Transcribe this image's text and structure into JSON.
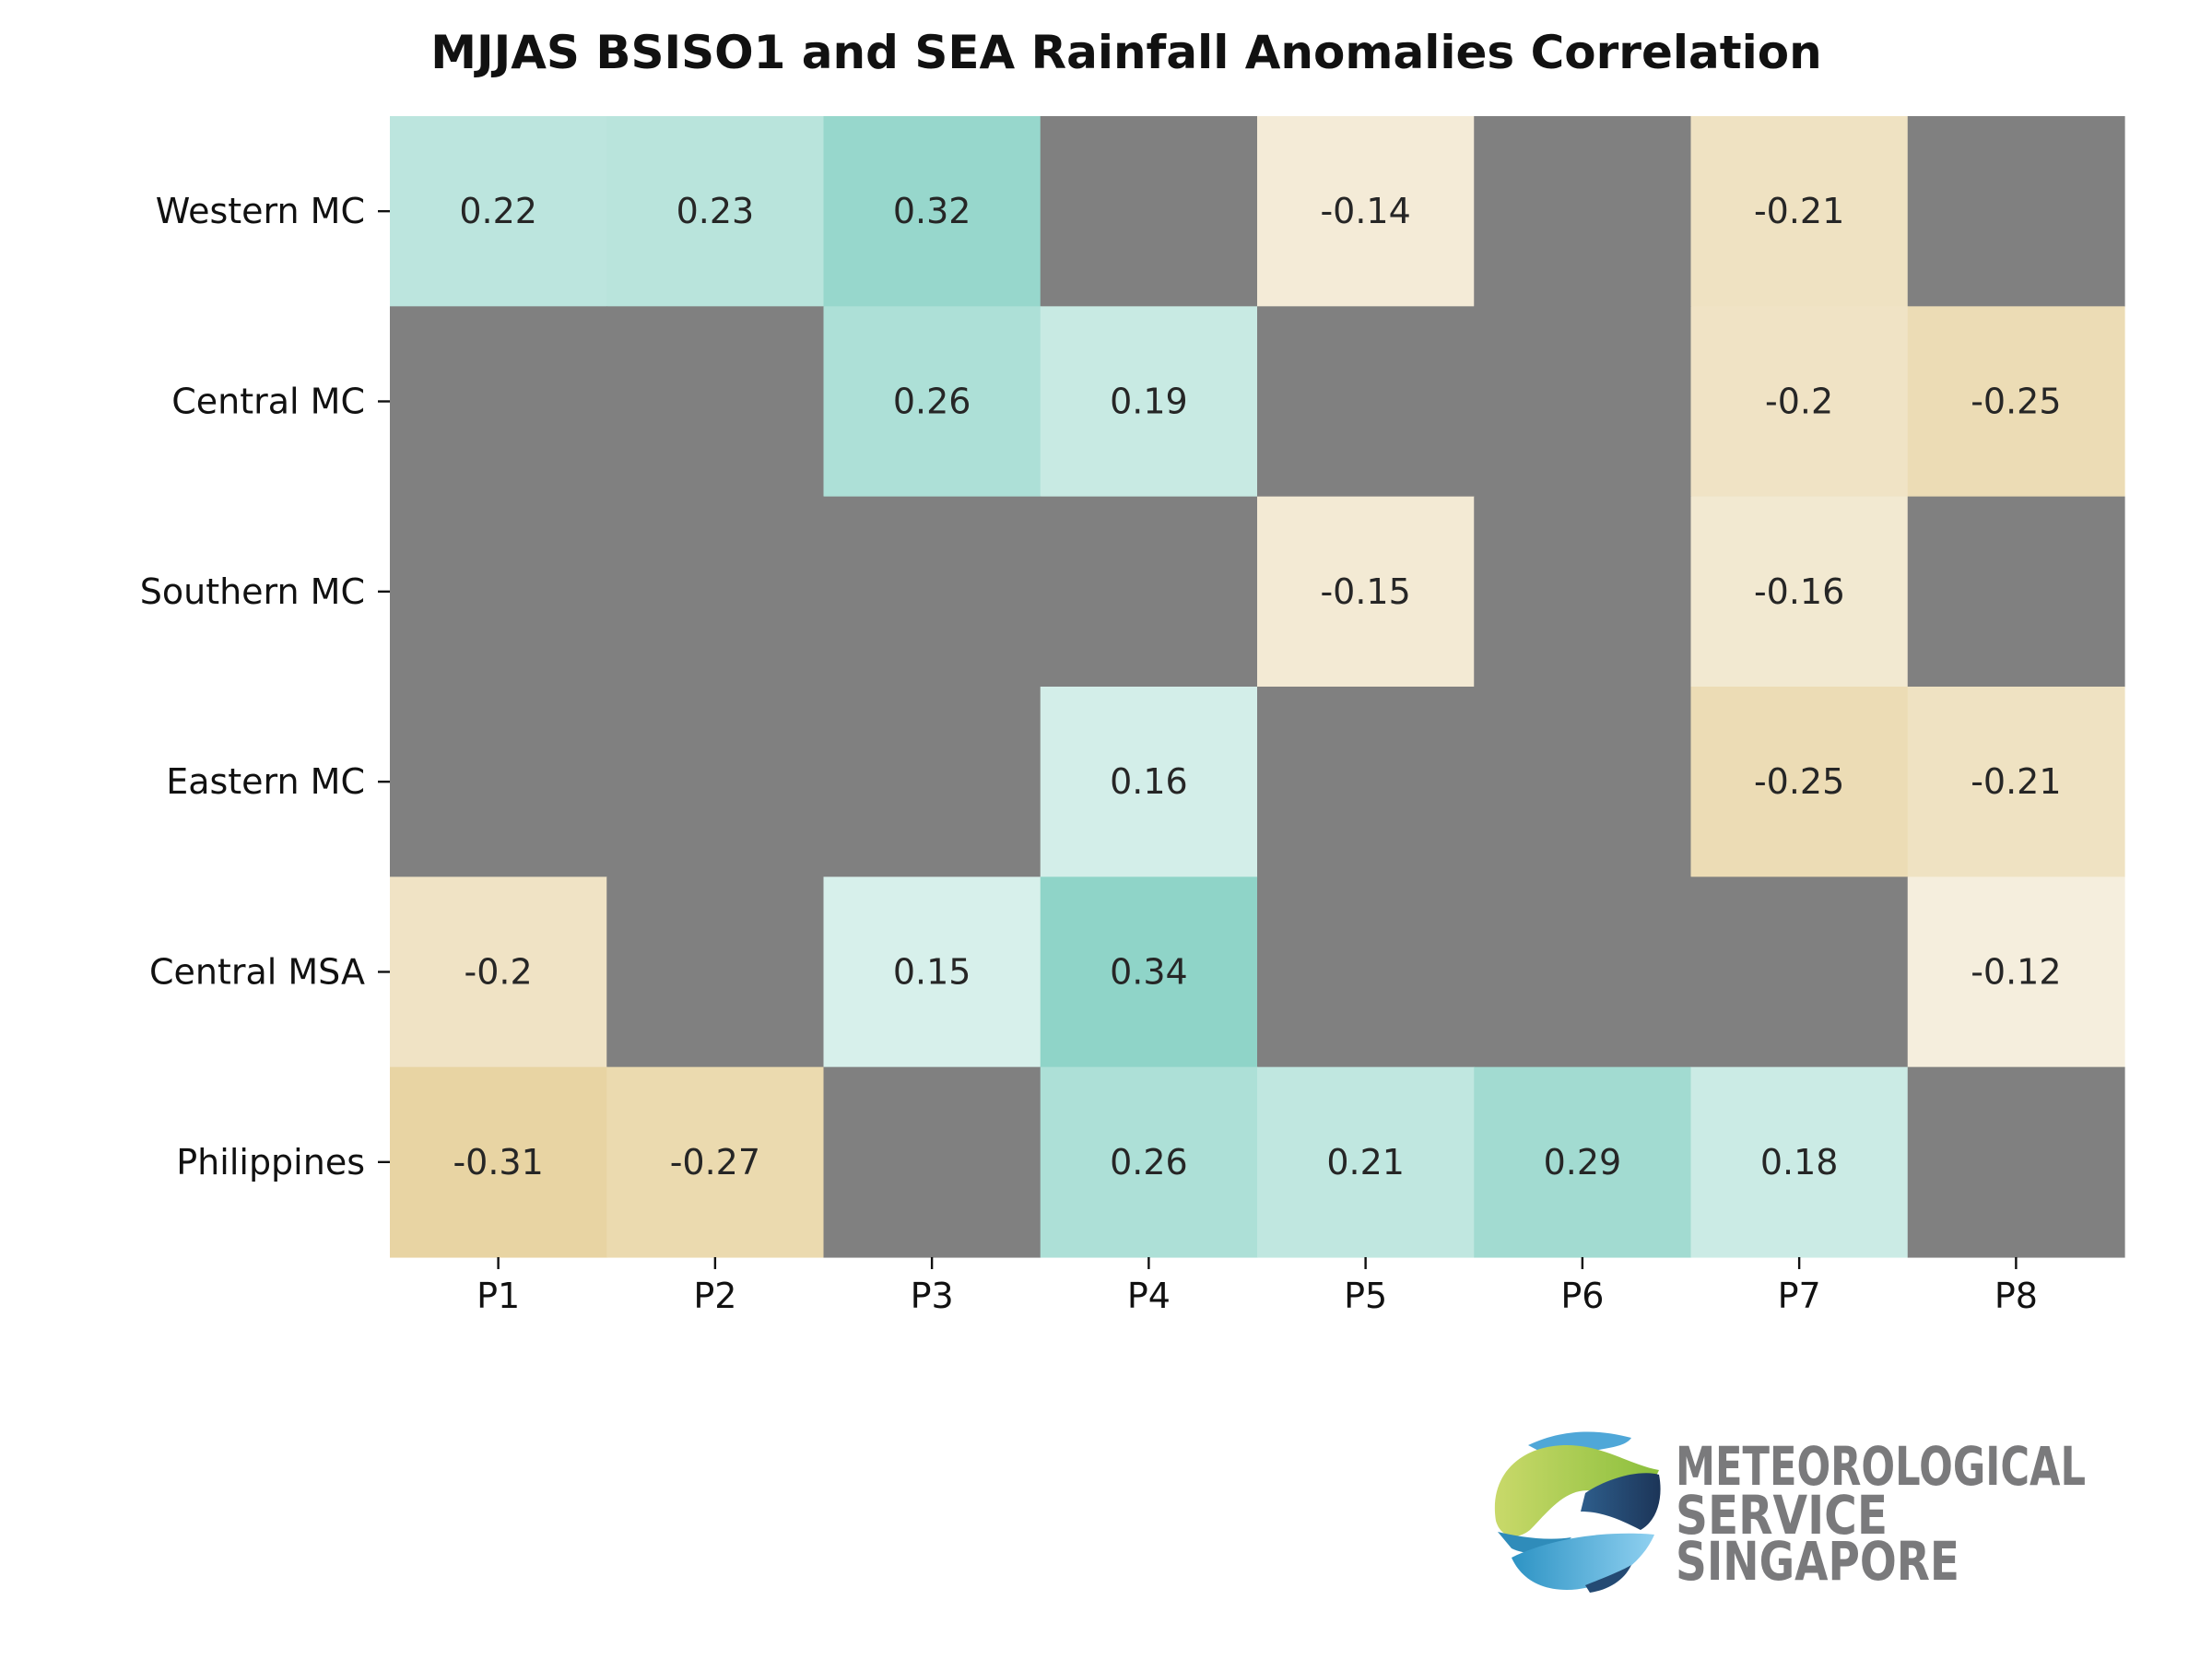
{
  "chart_data": {
    "type": "heatmap",
    "title": "MJJAS BSISO1 and SEA Rainfall Anomalies Correlation",
    "xlabel": "",
    "ylabel": "",
    "x_categories": [
      "P1",
      "P2",
      "P3",
      "P4",
      "P5",
      "P6",
      "P7",
      "P8"
    ],
    "y_categories": [
      "Western MC",
      "Central MC",
      "Southern MC",
      "Eastern MC",
      "Central MSA",
      "Philippines"
    ],
    "values": [
      [
        0.22,
        0.23,
        0.32,
        null,
        -0.14,
        null,
        -0.21,
        null
      ],
      [
        null,
        null,
        0.26,
        0.19,
        null,
        null,
        -0.2,
        -0.25
      ],
      [
        null,
        null,
        null,
        null,
        -0.15,
        null,
        -0.16,
        null
      ],
      [
        null,
        null,
        null,
        0.16,
        null,
        null,
        -0.25,
        -0.21
      ],
      [
        -0.2,
        null,
        0.15,
        0.34,
        null,
        null,
        null,
        -0.12
      ],
      [
        -0.31,
        -0.27,
        null,
        0.26,
        0.21,
        0.29,
        0.18,
        null
      ]
    ],
    "value_labels": [
      [
        "0.22",
        "0.23",
        "0.32",
        "",
        "-0.14",
        "",
        "-0.21",
        ""
      ],
      [
        "",
        "",
        "0.26",
        "0.19",
        "",
        "",
        "-0.2",
        "-0.25"
      ],
      [
        "",
        "",
        "",
        "",
        "-0.15",
        "",
        "-0.16",
        ""
      ],
      [
        "",
        "",
        "",
        "0.16",
        "",
        "",
        "-0.25",
        "-0.21"
      ],
      [
        "-0.2",
        "",
        "0.15",
        "0.34",
        "",
        "",
        "",
        "-0.12"
      ],
      [
        "-0.31",
        "-0.27",
        "",
        "0.26",
        "0.21",
        "0.29",
        "0.18",
        ""
      ]
    ],
    "missing_color": "#808080",
    "colors": {
      "positive_strong": "#8fd4c8",
      "positive_weak": "#e2f4f0",
      "negative_strong": "#e6d09a",
      "negative_weak": "#f5eedd",
      "text": "#262626"
    },
    "grid": false,
    "legend": "none"
  },
  "logo": {
    "name": "Meteorological Service Singapore",
    "line1": "METEOROLOGICAL",
    "line2": "SERVICE",
    "line3": "SINGAPORE"
  }
}
